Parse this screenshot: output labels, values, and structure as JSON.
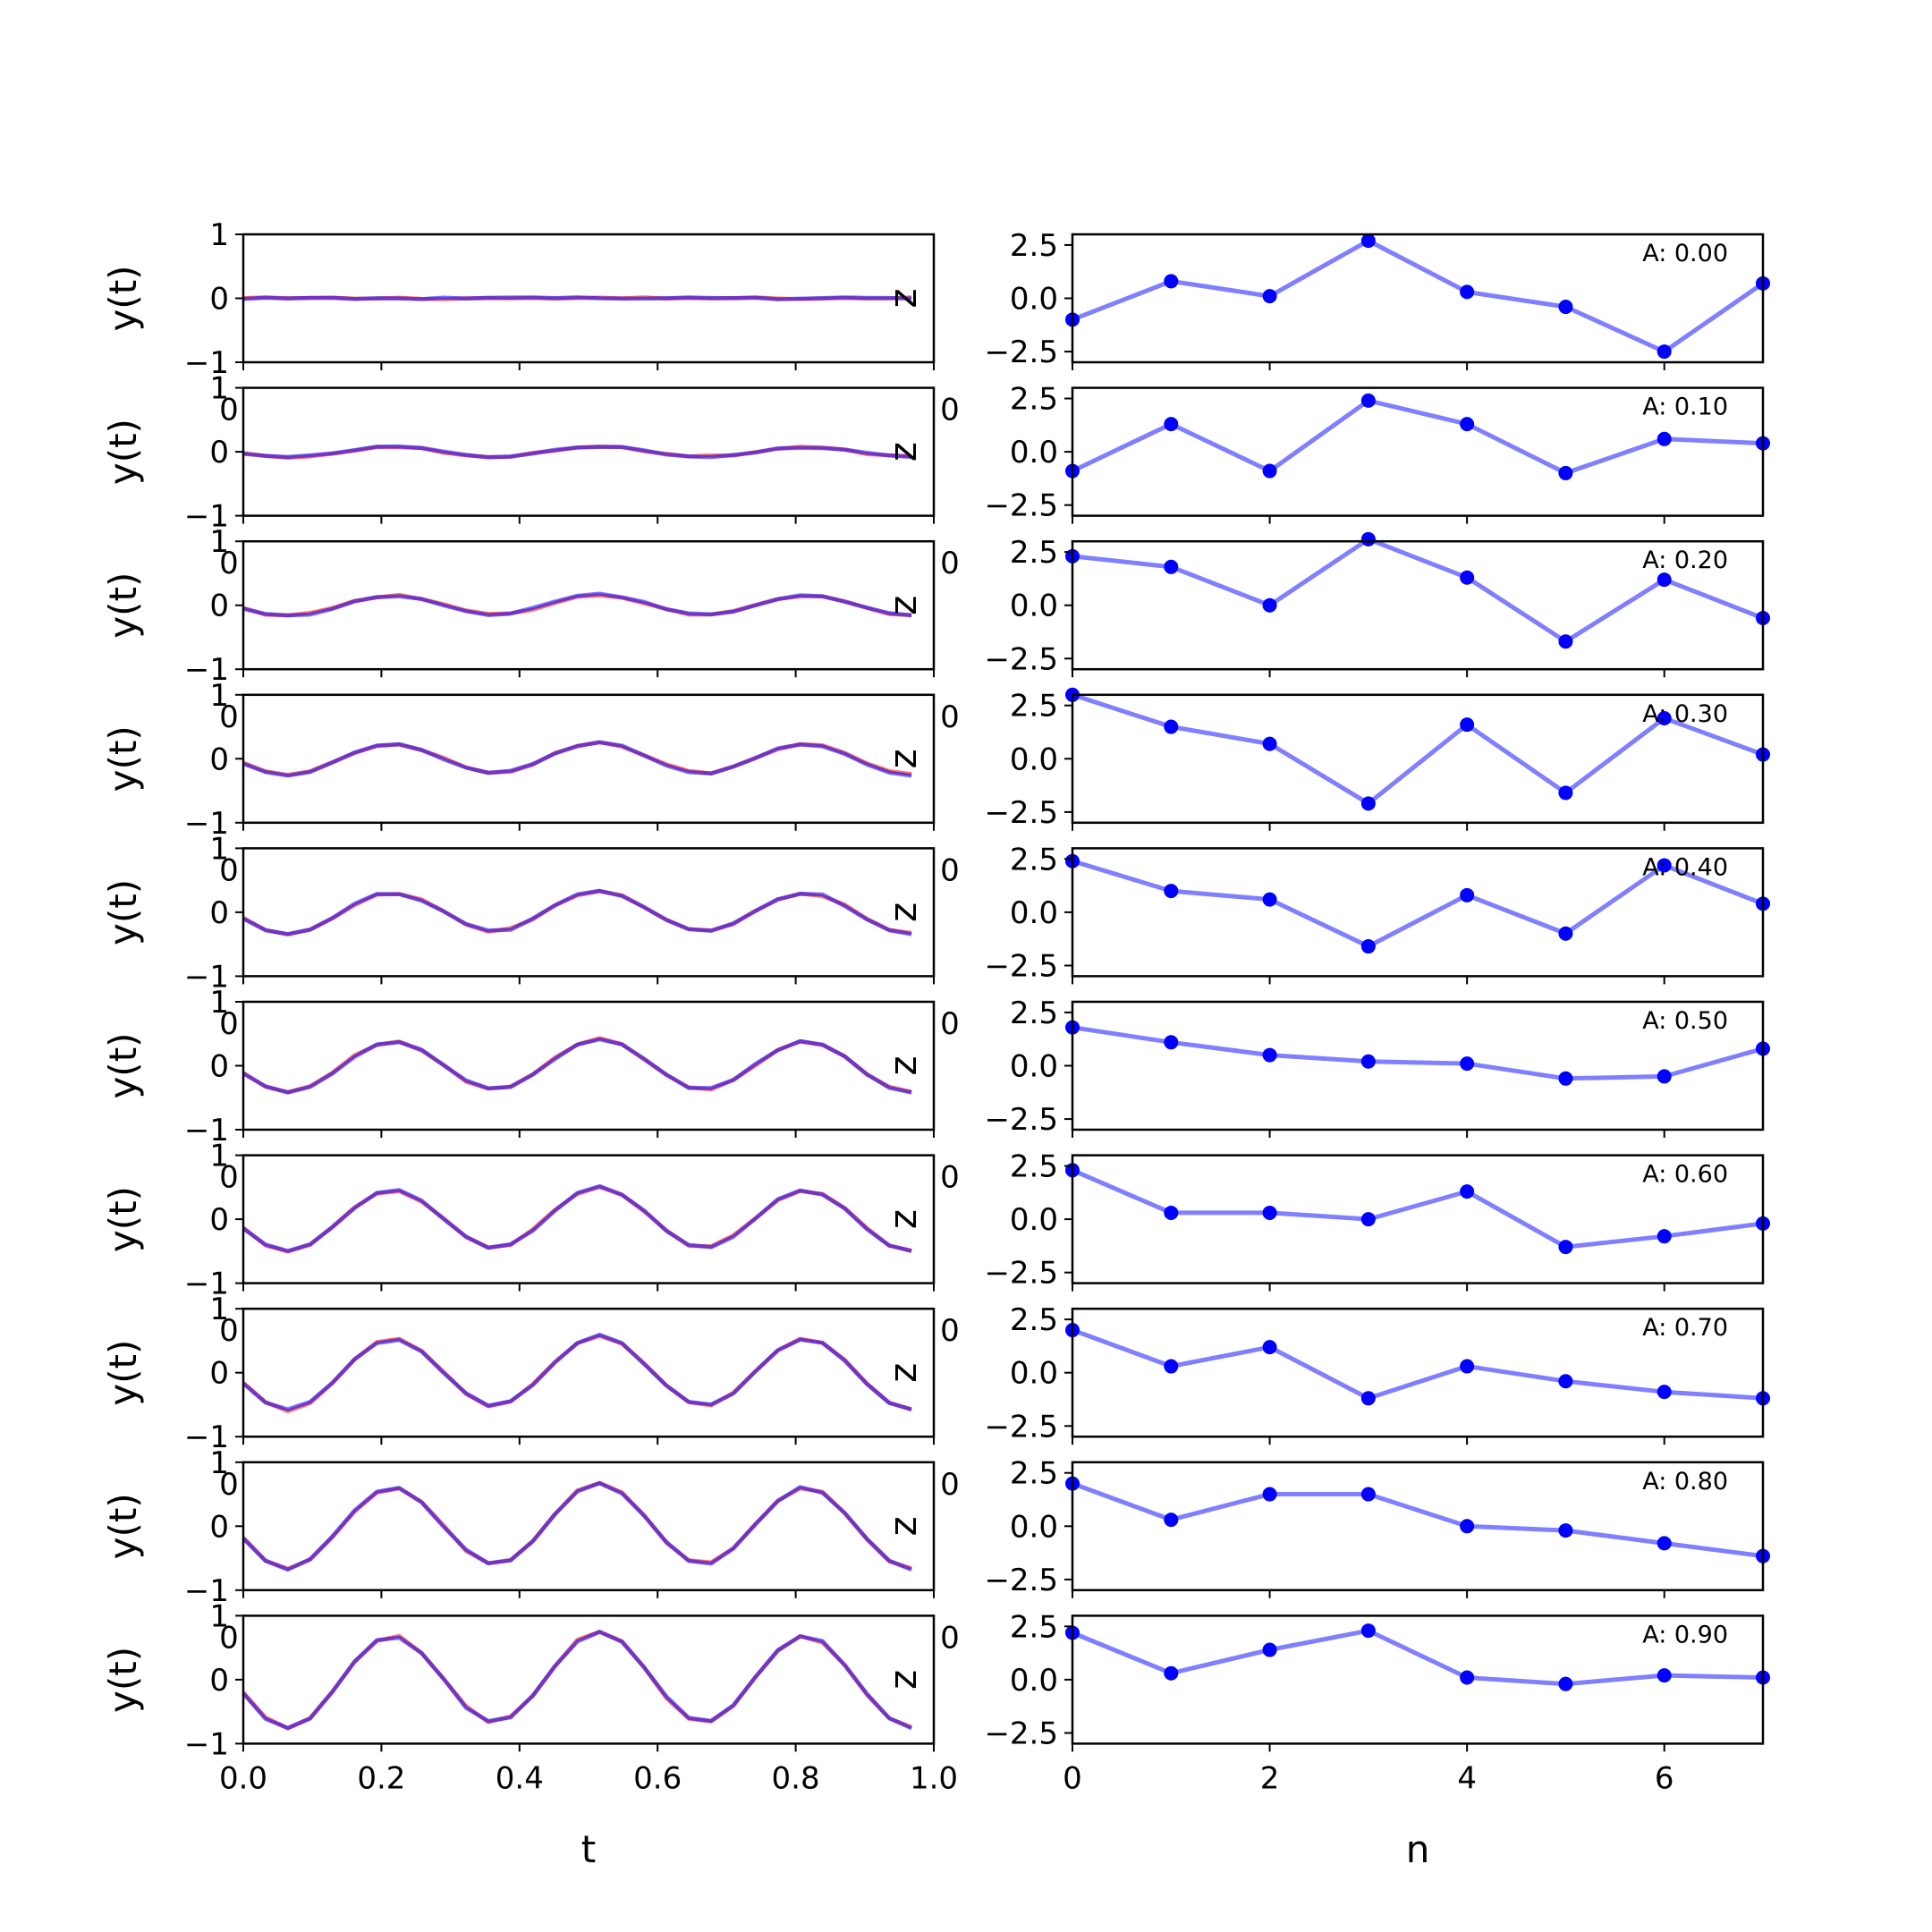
{
  "chart_data": {
    "type": "line",
    "left": {
      "xlabel": "t",
      "ylabel": "y(t)",
      "right_side_label": "z",
      "xlim": [
        0,
        1
      ],
      "ylim": [
        -1,
        1
      ],
      "xticks": [
        0,
        0.2,
        0.4,
        0.6,
        0.8,
        1
      ],
      "xtick_labels": [
        "0.0",
        "0.2",
        "0.4",
        "0.6",
        "0.8",
        "1.0"
      ],
      "yticks": [
        -1,
        0,
        1
      ],
      "ytick_labels": [
        "−1",
        "0",
        "1"
      ],
      "series_colors": {
        "red": "#ff0000",
        "blue": "#0000ff",
        "overlap": "#800080"
      },
      "x": [
        0,
        0.0323,
        0.0645,
        0.0968,
        0.129,
        0.1613,
        0.1935,
        0.2258,
        0.2581,
        0.2903,
        0.3226,
        0.3548,
        0.3871,
        0.4194,
        0.4516,
        0.4839,
        0.5161,
        0.5484,
        0.5806,
        0.6129,
        0.6452,
        0.6774,
        0.7097,
        0.7419,
        0.7742,
        0.8065,
        0.8387,
        0.871,
        0.9032,
        0.9355,
        0.9677
      ]
    },
    "right": {
      "xlabel": "n",
      "xlim": [
        0,
        7
      ],
      "ylim": [
        -3,
        3
      ],
      "xticks": [
        0,
        2,
        4,
        6
      ],
      "xtick_labels": [
        "0",
        "2",
        "4",
        "6"
      ],
      "yticks": [
        -2.5,
        0,
        2.5
      ],
      "ytick_labels": [
        "−2.5",
        "0.0",
        "2.5"
      ],
      "line_color": "#7f7fff",
      "marker_color": "#0000ff",
      "n": [
        0,
        1,
        2,
        3,
        4,
        5,
        6,
        7
      ]
    },
    "panels": [
      {
        "amplitude": 0.0,
        "annotation": "A: 0.00",
        "phantom_left": "",
        "phantom_right": "",
        "z": [
          -1.0,
          0.8,
          0.1,
          2.7,
          0.3,
          -0.4,
          -2.5,
          0.7
        ]
      },
      {
        "amplitude": 0.1,
        "annotation": "A: 0.10",
        "phantom_left": "0",
        "phantom_right": "0",
        "z": [
          -0.9,
          1.3,
          -0.9,
          2.4,
          1.3,
          -1.0,
          0.6,
          0.4
        ]
      },
      {
        "amplitude": 0.2,
        "annotation": "A: 0.20",
        "phantom_left": "0",
        "phantom_right": "0",
        "z": [
          2.3,
          1.8,
          0.0,
          3.1,
          1.3,
          -1.7,
          1.2,
          -0.6
        ]
      },
      {
        "amplitude": 0.3,
        "annotation": "A: 0.30",
        "phantom_left": "0",
        "phantom_right": "0",
        "z": [
          3.0,
          1.5,
          0.7,
          -2.1,
          1.6,
          -1.6,
          1.9,
          0.2
        ]
      },
      {
        "amplitude": 0.4,
        "annotation": "A: 0.40",
        "phantom_left": "0",
        "phantom_right": "0",
        "z": [
          2.4,
          1.0,
          0.6,
          -1.6,
          0.8,
          -1.0,
          2.2,
          0.4
        ]
      },
      {
        "amplitude": 0.5,
        "annotation": "A: 0.50",
        "phantom_left": "0",
        "phantom_right": "0",
        "z": [
          1.8,
          1.1,
          0.5,
          0.2,
          0.1,
          -0.6,
          -0.5,
          0.8
        ]
      },
      {
        "amplitude": 0.6,
        "annotation": "A: 0.60",
        "phantom_left": "0",
        "phantom_right": "0",
        "z": [
          2.3,
          0.3,
          0.3,
          0.0,
          1.3,
          -1.3,
          -0.8,
          -0.2
        ]
      },
      {
        "amplitude": 0.7,
        "annotation": "A: 0.70",
        "phantom_left": "0",
        "phantom_right": "0",
        "z": [
          2.0,
          0.3,
          1.2,
          -1.2,
          0.3,
          -0.4,
          -0.9,
          -1.2
        ]
      },
      {
        "amplitude": 0.8,
        "annotation": "A: 0.80",
        "phantom_left": "0",
        "phantom_right": "0",
        "z": [
          2.0,
          0.3,
          1.5,
          1.5,
          0.0,
          -0.2,
          -0.8,
          -1.4
        ]
      },
      {
        "amplitude": 0.9,
        "annotation": "A: 0.90",
        "phantom_left": "0",
        "phantom_right": "0",
        "z": [
          2.2,
          0.3,
          1.4,
          2.3,
          0.1,
          -0.2,
          0.2,
          0.1
        ]
      }
    ]
  }
}
